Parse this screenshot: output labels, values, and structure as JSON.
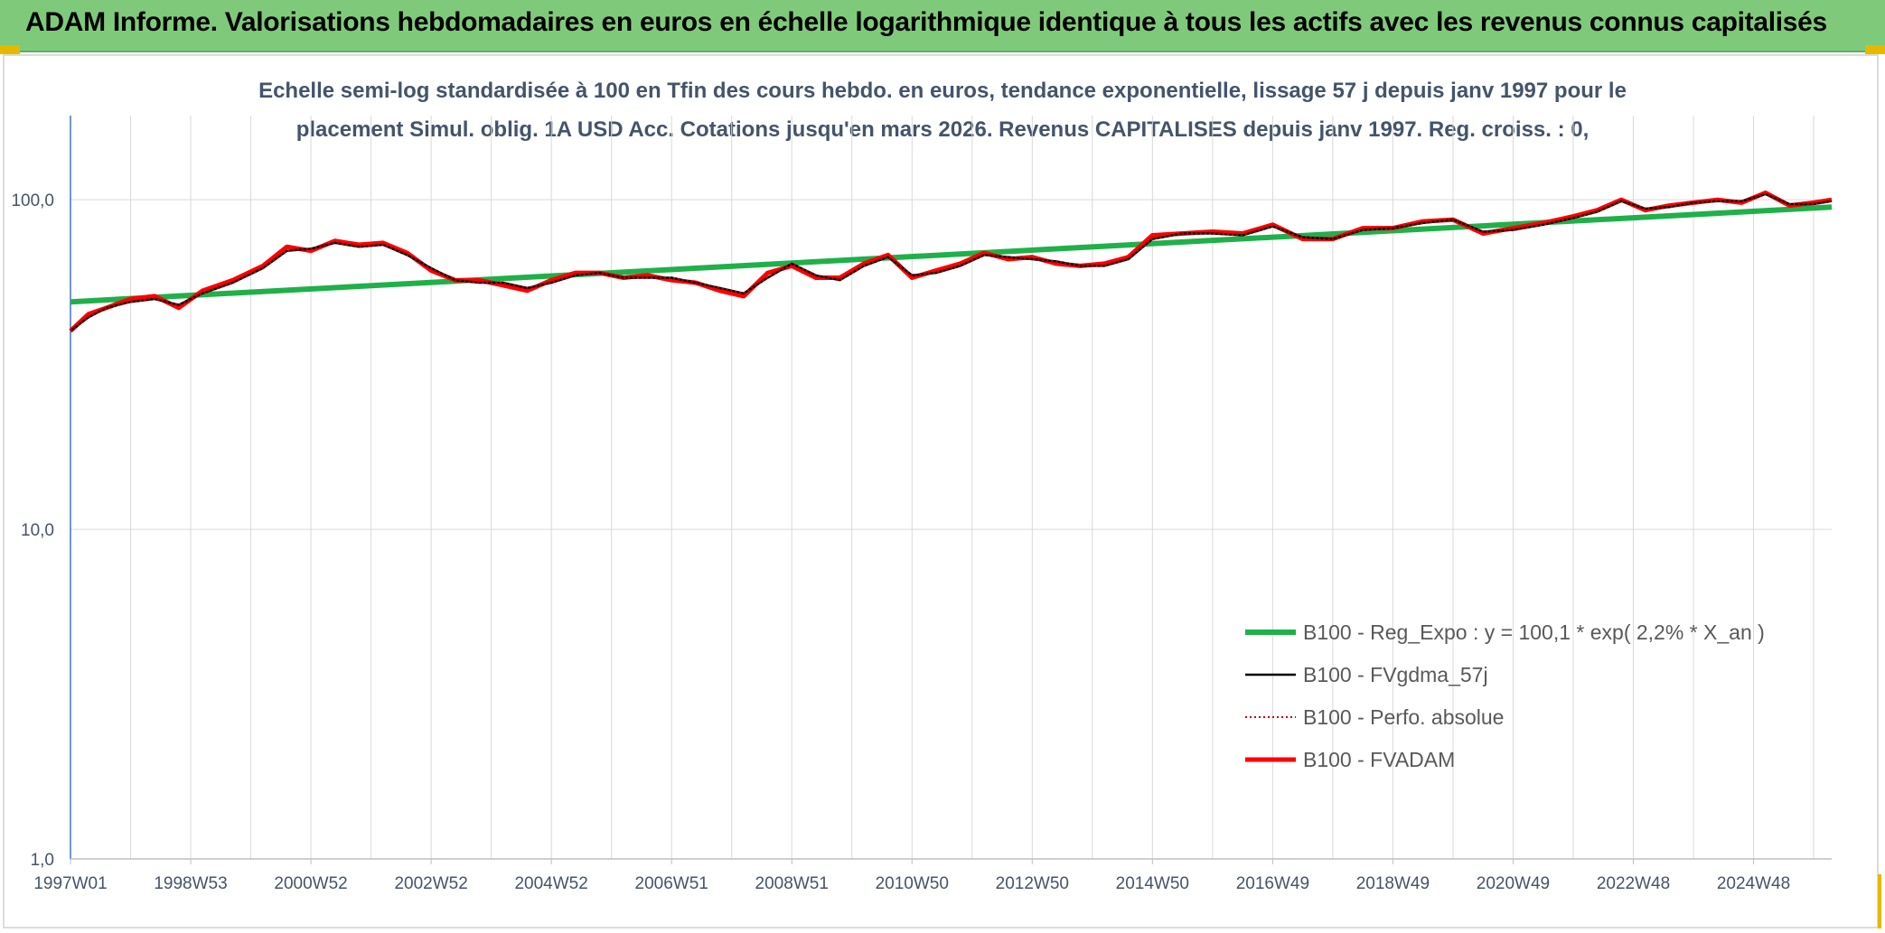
{
  "header": {
    "title": "ADAM Informe. Valorisations hebdomadaires en euros en échelle logarithmique identique à tous les actifs avec les revenus connus capitalisés"
  },
  "chart_data": {
    "type": "line",
    "title_line1": "Echelle semi-log standardisée à 100 en Tfin des cours hebdo. en euros, tendance exponentielle, lissage 57 j depuis janv 1997 pour le",
    "title_line2": "placement Simul. oblig. 1A USD Acc. Cotations jusqu'en mars 2026. Revenus CAPITALISES depuis janv 1997. Reg. croiss. : 0,",
    "y_scale": "log",
    "ylim": [
      1,
      180
    ],
    "xlim": [
      1997.0,
      2026.3
    ],
    "y_ticks": [
      {
        "value": 1,
        "label": "1,0"
      },
      {
        "value": 10,
        "label": "10,0"
      },
      {
        "value": 100,
        "label": "100,0"
      }
    ],
    "x_ticks": [
      {
        "value": 1997.0,
        "label": "1997W01"
      },
      {
        "value": 1999.0,
        "label": "1998W53"
      },
      {
        "value": 2001.0,
        "label": "2000W52"
      },
      {
        "value": 2003.0,
        "label": "2002W52"
      },
      {
        "value": 2005.0,
        "label": "2004W52"
      },
      {
        "value": 2007.0,
        "label": "2006W51"
      },
      {
        "value": 2009.0,
        "label": "2008W51"
      },
      {
        "value": 2011.0,
        "label": "2010W50"
      },
      {
        "value": 2013.0,
        "label": "2012W50"
      },
      {
        "value": 2015.0,
        "label": "2014W50"
      },
      {
        "value": 2017.0,
        "label": "2016W49"
      },
      {
        "value": 2019.0,
        "label": "2018W49"
      },
      {
        "value": 2021.0,
        "label": "2020W49"
      },
      {
        "value": 2023.0,
        "label": "2022W48"
      },
      {
        "value": 2025.0,
        "label": "2024W48"
      }
    ],
    "series": [
      {
        "name": "B100 - Reg_Expo : y = 100,1 * exp( 2,2% *  X_an )",
        "color": "#1fb04a",
        "style": "solid-thick",
        "x": [
          1997.0,
          2026.3
        ],
        "values": [
          49,
          95
        ]
      },
      {
        "name": "B100 - FVgdma_57j",
        "color": "#000000",
        "style": "solid-thin",
        "x": [
          1997.0,
          1997.3,
          1997.6,
          1998.0,
          1998.4,
          1998.8,
          1999.2,
          1999.7,
          2000.2,
          2000.6,
          2001.0,
          2001.4,
          2001.8,
          2002.2,
          2002.6,
          2003.0,
          2003.4,
          2003.8,
          2004.2,
          2004.6,
          2005.0,
          2005.4,
          2005.8,
          2006.2,
          2006.6,
          2007.0,
          2007.4,
          2007.8,
          2008.2,
          2008.6,
          2009.0,
          2009.4,
          2009.8,
          2010.2,
          2010.6,
          2011.0,
          2011.4,
          2011.8,
          2012.2,
          2012.6,
          2013.0,
          2013.4,
          2013.8,
          2014.2,
          2014.6,
          2015.0,
          2015.5,
          2016.0,
          2016.5,
          2017.0,
          2017.5,
          2018.0,
          2018.5,
          2019.0,
          2019.5,
          2020.0,
          2020.5,
          2021.0,
          2021.5,
          2022.0,
          2022.4,
          2022.8,
          2023.2,
          2023.6,
          2024.0,
          2024.4,
          2024.8,
          2025.2,
          2025.6,
          2026.0,
          2026.3
        ],
        "values": [
          40,
          44,
          47,
          49,
          50,
          48,
          52,
          56,
          62,
          70,
          71,
          74,
          72,
          73,
          68,
          62,
          57,
          56,
          56,
          54,
          56,
          59,
          60,
          58,
          58,
          58,
          56,
          54,
          52,
          58,
          64,
          59,
          57,
          63,
          67,
          59,
          60,
          63,
          68,
          67,
          66,
          65,
          63,
          63,
          66,
          76,
          79,
          79,
          78,
          83,
          77,
          76,
          81,
          82,
          85,
          87,
          80,
          81,
          84,
          88,
          92,
          99,
          94,
          95,
          98,
          99,
          99,
          104,
          97,
          97,
          99
        ]
      },
      {
        "name": "B100 - Perfo. absolue",
        "color": "#c00000",
        "style": "dotted",
        "x": [
          1997.0,
          1997.3,
          1997.6,
          1998.0,
          1998.4,
          1998.8,
          1999.2,
          1999.7,
          2000.2,
          2000.6,
          2001.0,
          2001.4,
          2001.8,
          2002.2,
          2002.6,
          2003.0,
          2003.4,
          2003.8,
          2004.2,
          2004.6,
          2005.0,
          2005.4,
          2005.8,
          2006.2,
          2006.6,
          2007.0,
          2007.4,
          2007.8,
          2008.2,
          2008.6,
          2009.0,
          2009.4,
          2009.8,
          2010.2,
          2010.6,
          2011.0,
          2011.4,
          2011.8,
          2012.2,
          2012.6,
          2013.0,
          2013.4,
          2013.8,
          2014.2,
          2014.6,
          2015.0,
          2015.5,
          2016.0,
          2016.5,
          2017.0,
          2017.5,
          2018.0,
          2018.5,
          2019.0,
          2019.5,
          2020.0,
          2020.5,
          2021.0,
          2021.5,
          2022.0,
          2022.4,
          2022.8,
          2023.2,
          2023.6,
          2024.0,
          2024.4,
          2024.8,
          2025.2,
          2025.6,
          2026.0,
          2026.3
        ],
        "values": [
          40,
          44,
          47,
          49,
          50,
          48,
          52,
          56,
          62,
          70,
          71,
          74,
          72,
          73,
          68,
          62,
          57,
          56,
          56,
          54,
          56,
          59,
          60,
          58,
          58,
          58,
          56,
          54,
          52,
          58,
          64,
          59,
          57,
          63,
          67,
          59,
          60,
          63,
          68,
          67,
          66,
          65,
          63,
          63,
          66,
          76,
          79,
          79,
          78,
          83,
          77,
          76,
          81,
          82,
          85,
          87,
          80,
          81,
          84,
          88,
          92,
          99,
          94,
          95,
          98,
          99,
          99,
          104,
          97,
          97,
          99
        ]
      },
      {
        "name": "B100 - FVADAM",
        "color": "#ff0000",
        "style": "solid-thick",
        "x": [
          1997.0,
          1997.3,
          1997.6,
          1998.0,
          1998.4,
          1998.8,
          1999.2,
          1999.7,
          2000.2,
          2000.6,
          2001.0,
          2001.4,
          2001.8,
          2002.2,
          2002.6,
          2003.0,
          2003.4,
          2003.8,
          2004.2,
          2004.6,
          2005.0,
          2005.4,
          2005.8,
          2006.2,
          2006.6,
          2007.0,
          2007.4,
          2007.8,
          2008.2,
          2008.6,
          2009.0,
          2009.4,
          2009.8,
          2010.2,
          2010.6,
          2011.0,
          2011.4,
          2011.8,
          2012.2,
          2012.6,
          2013.0,
          2013.4,
          2013.8,
          2014.2,
          2014.6,
          2015.0,
          2015.5,
          2016.0,
          2016.5,
          2017.0,
          2017.5,
          2018.0,
          2018.5,
          2019.0,
          2019.5,
          2020.0,
          2020.5,
          2021.0,
          2021.5,
          2022.0,
          2022.4,
          2022.8,
          2023.2,
          2023.6,
          2024.0,
          2024.4,
          2024.8,
          2025.2,
          2025.6,
          2026.0,
          2026.3
        ],
        "values": [
          40,
          45,
          47,
          50,
          51,
          47,
          53,
          57,
          63,
          72,
          70,
          75,
          73,
          74,
          69,
          61,
          57,
          57,
          55,
          53,
          57,
          60,
          60,
          58,
          59,
          57,
          56,
          53,
          51,
          60,
          63,
          58,
          58,
          64,
          68,
          58,
          61,
          64,
          69,
          66,
          67,
          64,
          63,
          64,
          67,
          78,
          79,
          80,
          79,
          84,
          76,
          76,
          82,
          82,
          86,
          87,
          79,
          82,
          85,
          89,
          93,
          100,
          93,
          96,
          98,
          100,
          98,
          105,
          96,
          98,
          100
        ]
      }
    ]
  }
}
